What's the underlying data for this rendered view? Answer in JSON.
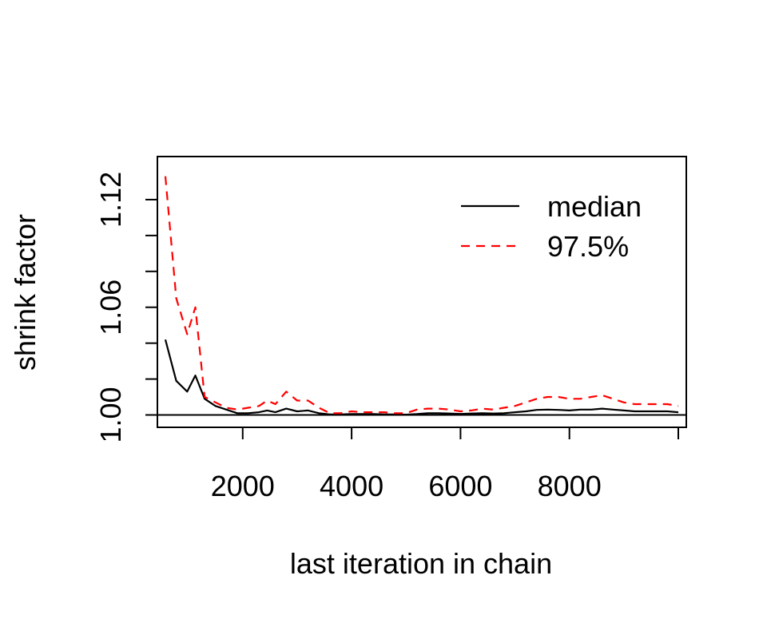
{
  "chart_data": {
    "type": "line",
    "title": "",
    "xlabel": "last iteration in chain",
    "ylabel": "shrink factor",
    "xlim": [
      580,
      10000
    ],
    "ylim": [
      0.998,
      1.14
    ],
    "x_ticks": [
      2000,
      4000,
      6000,
      8000,
      10000
    ],
    "x_tick_labels": [
      "2000",
      "4000",
      "6000",
      "8000"
    ],
    "y_ticks": [
      1.0,
      1.02,
      1.04,
      1.06,
      1.08,
      1.1,
      1.12
    ],
    "y_tick_labels": [
      "1.00",
      "1.06",
      "1.12"
    ],
    "reference_line": 1.0,
    "legend_position": "top-right",
    "legend": [
      {
        "label": "median",
        "color": "#000000",
        "style": "solid"
      },
      {
        "label": "97.5%",
        "color": "#ff0000",
        "style": "dashed"
      }
    ],
    "x": [
      580,
      780,
      980,
      1130,
      1300,
      1500,
      1700,
      1900,
      2100,
      2300,
      2450,
      2600,
      2800,
      3000,
      3200,
      3400,
      3600,
      3800,
      4000,
      4200,
      4400,
      4600,
      4800,
      5000,
      5200,
      5400,
      5600,
      5800,
      6000,
      6200,
      6400,
      6600,
      6800,
      7000,
      7200,
      7400,
      7600,
      7800,
      8000,
      8200,
      8400,
      8600,
      8800,
      9000,
      9200,
      9400,
      9600,
      9800,
      10000
    ],
    "series": [
      {
        "name": "median",
        "color": "#000000",
        "style": "solid",
        "values": [
          1.042,
          1.019,
          1.013,
          1.022,
          1.009,
          1.005,
          1.003,
          1.001,
          1.001,
          1.0015,
          1.0025,
          1.0015,
          1.0035,
          1.002,
          1.0025,
          1.001,
          1.0003,
          1.0003,
          1.0005,
          1.0005,
          1.0005,
          1.0003,
          1.0003,
          1.0002,
          1.0005,
          1.001,
          1.001,
          1.0008,
          1.0006,
          1.0008,
          1.001,
          1.0008,
          1.001,
          1.0015,
          1.002,
          1.0028,
          1.003,
          1.0028,
          1.0025,
          1.003,
          1.003,
          1.0035,
          1.003,
          1.0025,
          1.002,
          1.002,
          1.002,
          1.002,
          1.0015
        ]
      },
      {
        "name": "97.5%",
        "color": "#ff0000",
        "style": "dashed",
        "values": [
          1.133,
          1.065,
          1.045,
          1.06,
          1.01,
          1.007,
          1.004,
          1.003,
          1.004,
          1.005,
          1.008,
          1.006,
          1.013,
          1.008,
          1.008,
          1.004,
          1.001,
          1.001,
          1.002,
          1.0015,
          1.0015,
          1.0015,
          1.001,
          1.001,
          1.003,
          1.0035,
          1.0035,
          1.003,
          1.002,
          1.0025,
          1.0035,
          1.003,
          1.004,
          1.005,
          1.007,
          1.009,
          1.01,
          1.01,
          1.009,
          1.009,
          1.01,
          1.011,
          1.009,
          1.007,
          1.006,
          1.006,
          1.006,
          1.006,
          1.005
        ]
      }
    ]
  }
}
